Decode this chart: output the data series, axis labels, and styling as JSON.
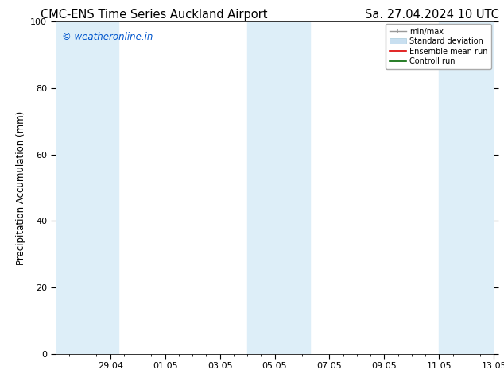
{
  "title_left": "CMC-ENS Time Series Auckland Airport",
  "title_right": "Sa. 27.04.2024 10 UTC",
  "ylabel": "Precipitation Accumulation (mm)",
  "watermark": "© weatheronline.in",
  "watermark_color": "#0055cc",
  "ylim": [
    0,
    100
  ],
  "yticks": [
    0,
    20,
    40,
    60,
    80,
    100
  ],
  "xtick_labels": [
    "29.04",
    "01.05",
    "03.05",
    "05.05",
    "07.05",
    "09.05",
    "11.05",
    "13.05"
  ],
  "xtick_positions": [
    2,
    4,
    6,
    8,
    10,
    12,
    14,
    16
  ],
  "xlim": [
    0,
    16
  ],
  "background_color": "#ffffff",
  "shaded_band_color": "#ddeef8",
  "legend_labels": [
    "min/max",
    "Standard deviation",
    "Ensemble mean run",
    "Controll run"
  ],
  "title_fontsize": 10.5,
  "tick_fontsize": 8,
  "ylabel_fontsize": 8.5,
  "watermark_fontsize": 8.5,
  "band1_x0": 0.0,
  "band1_x1": 2.3,
  "band2_x0": 7.0,
  "band2_x1": 9.3,
  "band3_x0": 14.0,
  "band3_x1": 16.0
}
